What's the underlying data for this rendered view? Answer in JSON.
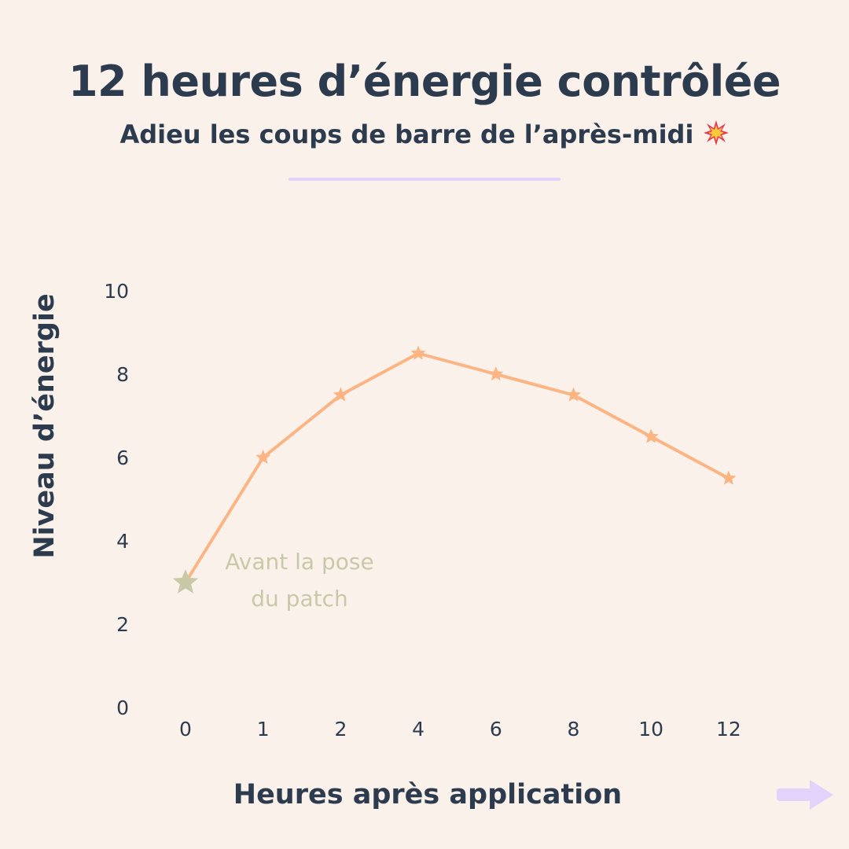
{
  "title": "12 heures d’énergie contrôlée",
  "subtitle": "Adieu les coups de barre de l’après-midi",
  "subtitle_icon": "collision-emoji",
  "next_icon": "arrow-right-icon",
  "colors": {
    "background": "#FAF1EB",
    "text": "#2D3B4E",
    "series": "#FBB482",
    "baseline_marker": "#C7C9A6",
    "accent": "#E3D2FA"
  },
  "chart_data": {
    "type": "line",
    "title": "12 heures d’énergie contrôlée",
    "subtitle": "Adieu les coups de barre de l’après-midi",
    "xlabel": "Heures après application",
    "ylabel": "Niveau d’énergie",
    "x_categories": [
      "0",
      "1",
      "2",
      "4",
      "6",
      "8",
      "10",
      "12"
    ],
    "y_ticks": [
      "0",
      "2",
      "4",
      "6",
      "8",
      "10"
    ],
    "ylim": [
      0,
      10
    ],
    "grid": false,
    "marker": "star",
    "series": [
      {
        "values": [
          3,
          6,
          7.5,
          8.5,
          8,
          7.5,
          6.5,
          5.5
        ]
      }
    ],
    "annotations": [
      {
        "text_lines": [
          "Avant la pose",
          "du patch"
        ],
        "point_index": 0
      }
    ]
  }
}
